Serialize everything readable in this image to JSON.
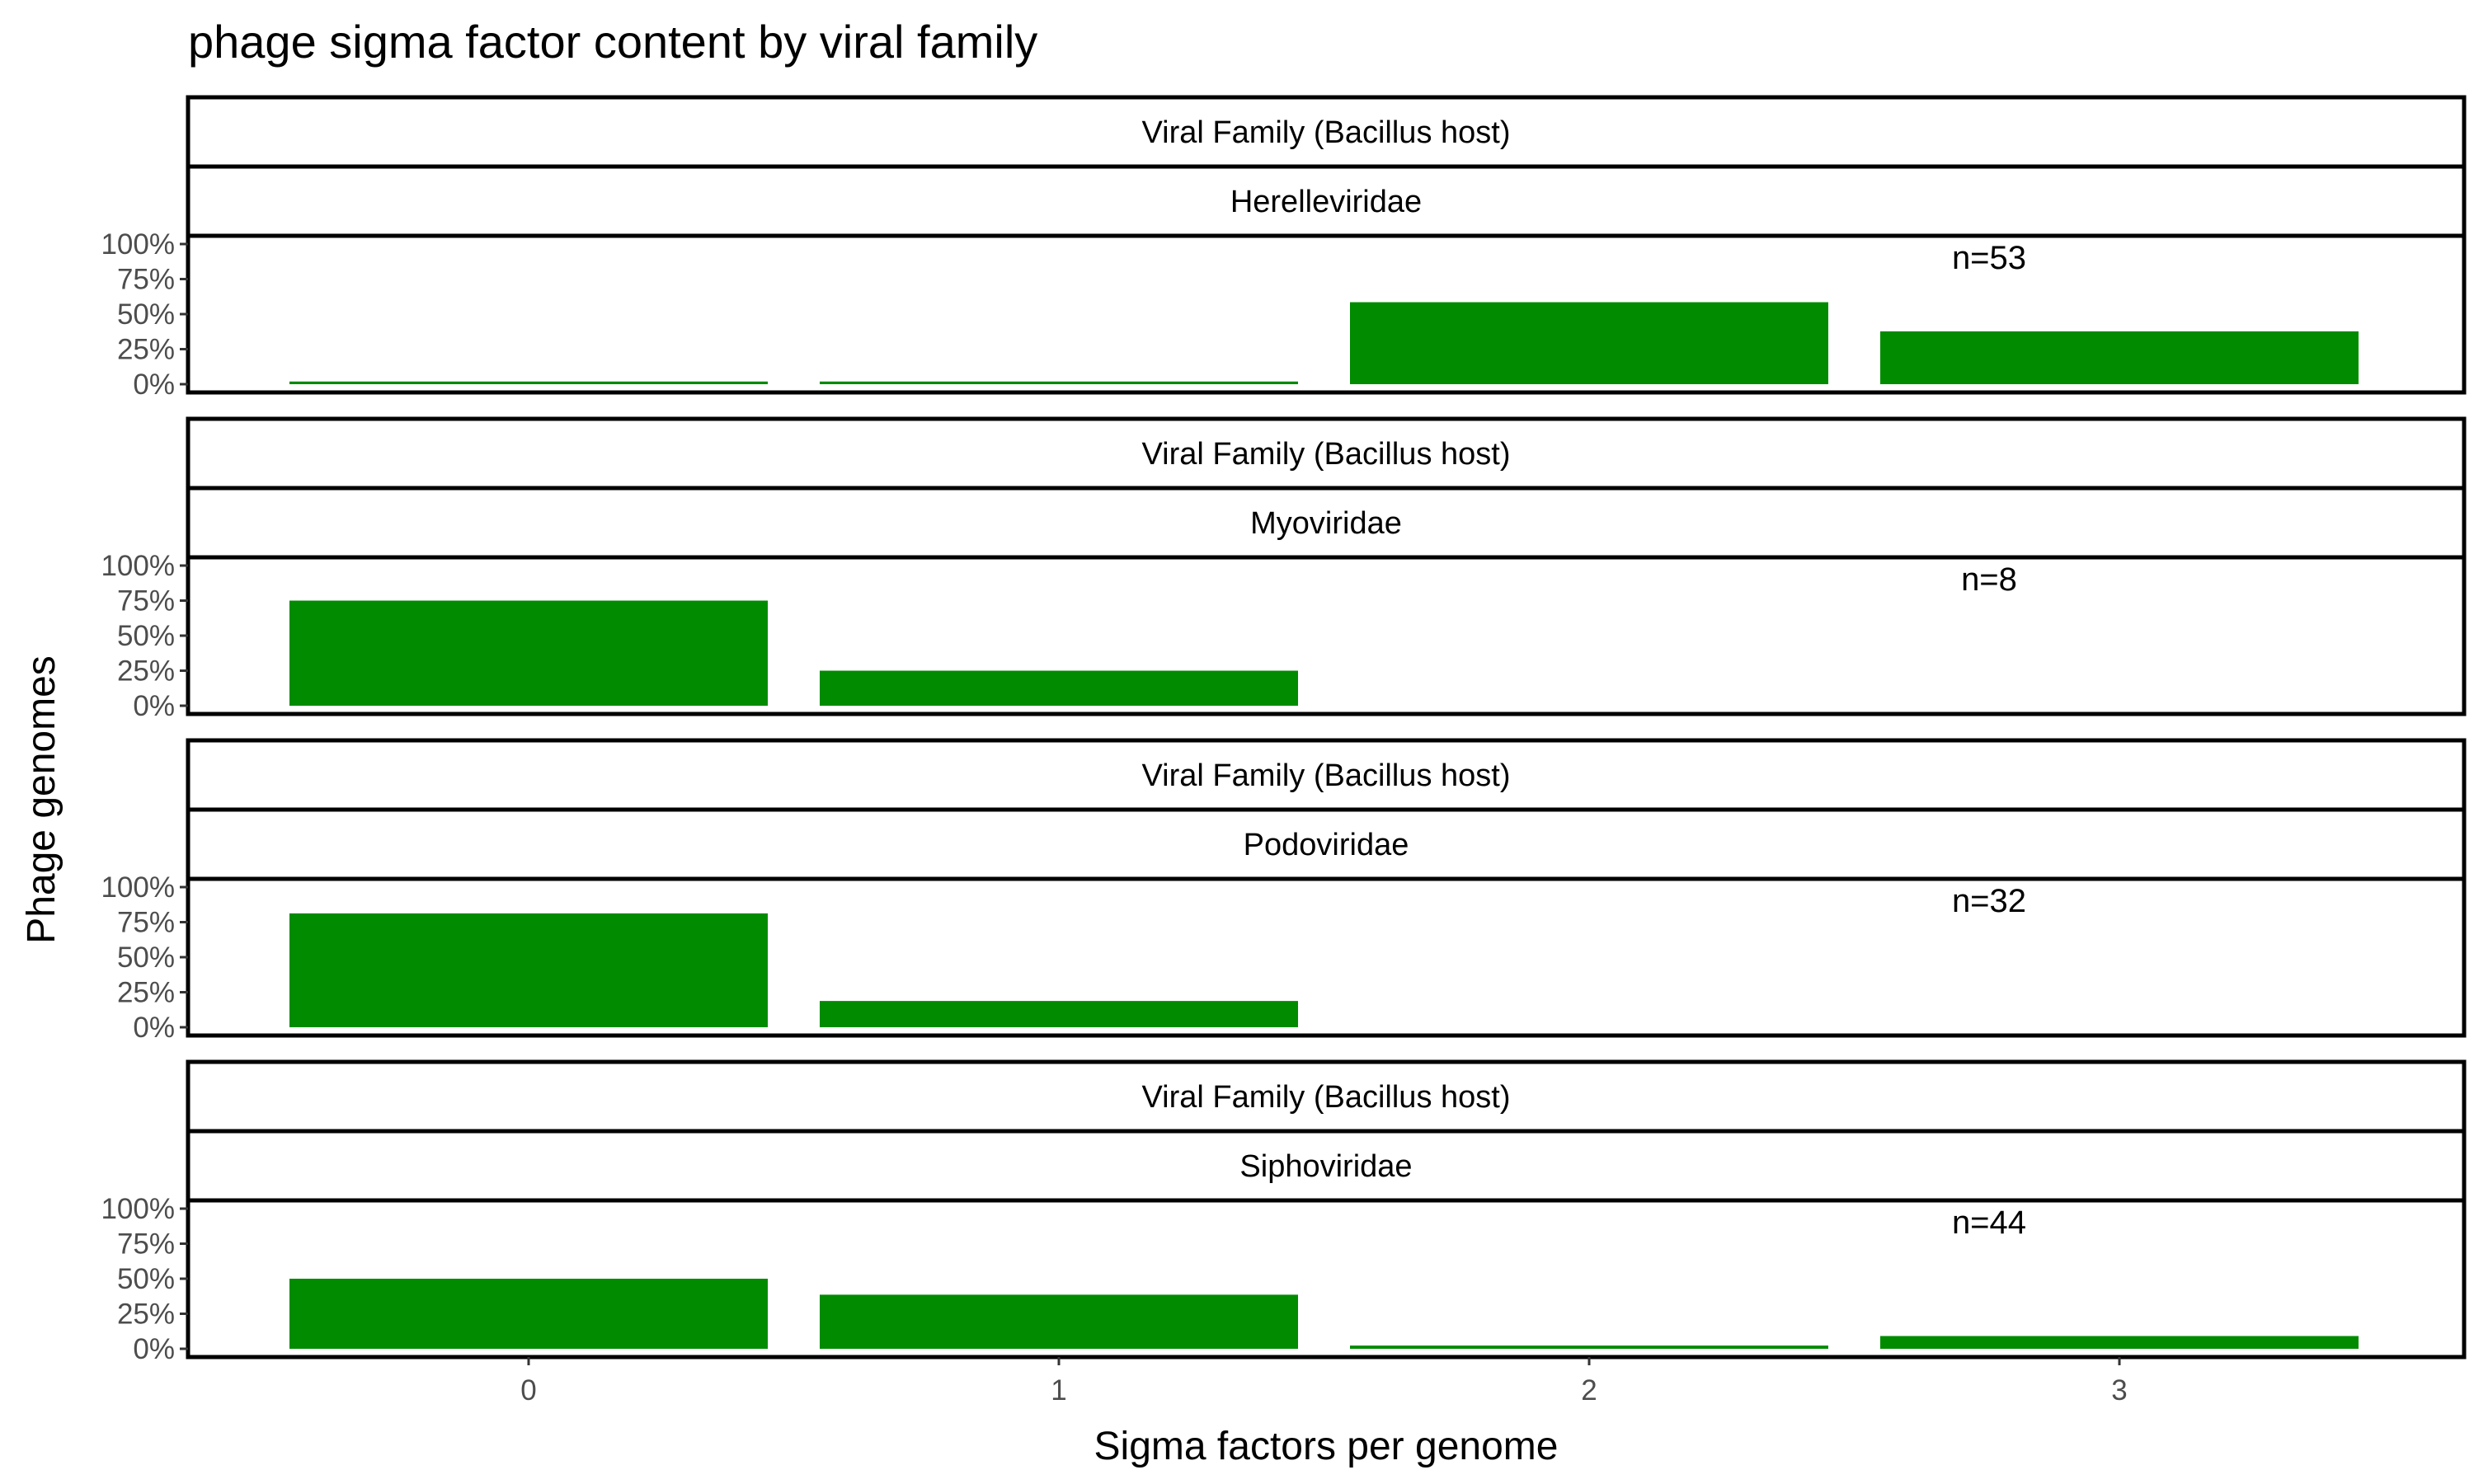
{
  "chart_data": {
    "type": "bar",
    "title": "phage sigma factor content by viral family",
    "xlabel": "Sigma factors per genome",
    "ylabel": "Phage genomes",
    "categories": [
      "0",
      "1",
      "2",
      "3"
    ],
    "ylim": [
      0,
      1
    ],
    "y_ticks": [
      "0%",
      "25%",
      "50%",
      "75%",
      "100%"
    ],
    "bar_color": "#008b00",
    "grid": false,
    "facet_strip_top": "Viral Family (Bacillus host)",
    "panels": [
      {
        "family": "Herelleviridae",
        "n_label": "n=53",
        "values": [
          0.019,
          0.019,
          0.585,
          0.377
        ]
      },
      {
        "family": "Myoviridae",
        "n_label": "n=8",
        "values": [
          0.75,
          0.25,
          0,
          0
        ]
      },
      {
        "family": "Podoviridae",
        "n_label": "n=32",
        "values": [
          0.8125,
          0.1875,
          0,
          0
        ]
      },
      {
        "family": "Siphoviridae",
        "n_label": "n=44",
        "values": [
          0.5,
          0.386,
          0.023,
          0.091
        ]
      }
    ]
  }
}
